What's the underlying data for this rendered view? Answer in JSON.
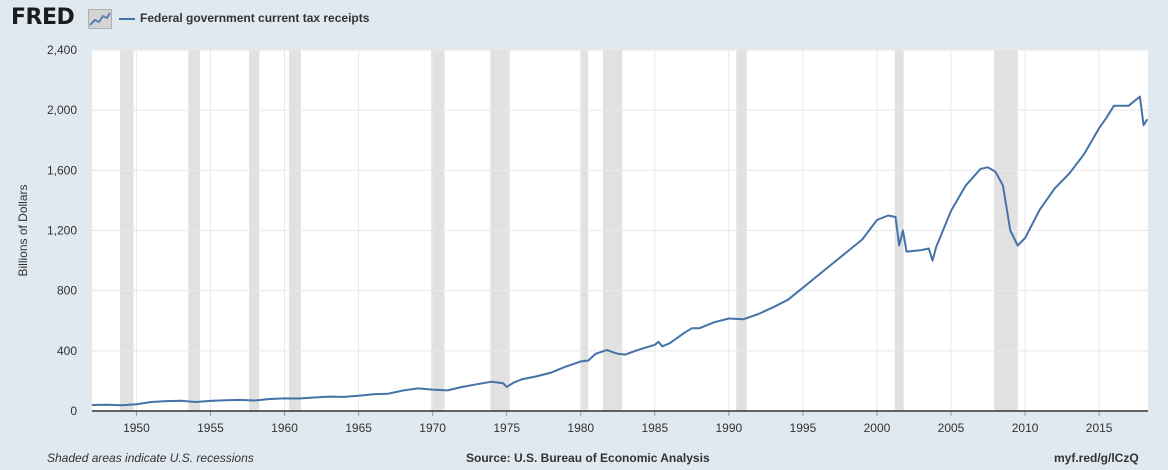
{
  "brand": {
    "logo_text": "FRED"
  },
  "legend": {
    "series_label": "Federal government current tax receipts"
  },
  "footer": {
    "note": "Shaded areas indicate U.S. recessions",
    "source": "Source: U.S. Bureau of Economic Analysis",
    "link": "myf.red/g/lCzQ"
  },
  "colors": {
    "line": "#4572a7",
    "recession": "#e1e1e1",
    "background": "#e1e9f0",
    "plot": "#ffffff",
    "grid": "#e8e8e8"
  },
  "chart_data": {
    "type": "line",
    "title": "",
    "xlabel": "",
    "ylabel": "Billions of Dollars",
    "xlim": [
      1947,
      2018.3
    ],
    "ylim": [
      0,
      2400
    ],
    "x_ticks": [
      1950,
      1955,
      1960,
      1965,
      1970,
      1975,
      1980,
      1985,
      1990,
      1995,
      2000,
      2005,
      2010,
      2015
    ],
    "y_ticks": [
      0,
      400,
      800,
      1200,
      1600,
      2000,
      2400
    ],
    "y_tick_labels": [
      "0",
      "400",
      "800",
      "1,200",
      "1,600",
      "2,000",
      "2,400"
    ],
    "grid": true,
    "recessions": [
      [
        1948.9,
        1949.8
      ],
      [
        1953.5,
        1954.3
      ],
      [
        1957.6,
        1958.3
      ],
      [
        1960.3,
        1961.1
      ],
      [
        1969.9,
        1970.8
      ],
      [
        1973.9,
        1975.2
      ],
      [
        1980.0,
        1980.5
      ],
      [
        1981.5,
        1982.8
      ],
      [
        1990.5,
        1991.2
      ],
      [
        2001.2,
        2001.8
      ],
      [
        2007.9,
        2009.5
      ]
    ],
    "series": [
      {
        "name": "Federal government current tax receipts",
        "x": [
          1947,
          1948,
          1949,
          1950,
          1951,
          1952,
          1953,
          1954,
          1955,
          1956,
          1957,
          1958,
          1959,
          1960,
          1961,
          1962,
          1963,
          1964,
          1965,
          1966,
          1967,
          1968,
          1969,
          1970,
          1971,
          1972,
          1973,
          1974,
          1974.75,
          1975.0,
          1975.5,
          1976,
          1977,
          1978,
          1979,
          1980,
          1980.5,
          1981,
          1981.75,
          1982.5,
          1983,
          1984,
          1985,
          1985.25,
          1985.5,
          1986,
          1987,
          1987.5,
          1988,
          1989,
          1990,
          1991,
          1992,
          1993,
          1994,
          1995,
          1996,
          1997,
          1998,
          1999,
          2000,
          2000.75,
          2001.25,
          2001.5,
          2001.75,
          2002,
          2003,
          2003.5,
          2003.75,
          2004,
          2005,
          2006,
          2007,
          2007.5,
          2008,
          2008.5,
          2009,
          2009.5,
          2010,
          2011,
          2012,
          2013,
          2014,
          2015,
          2015.5,
          2016,
          2017,
          2017.5,
          2017.75,
          2018,
          2018.25
        ],
        "values": [
          40,
          41,
          38,
          45,
          60,
          66,
          68,
          60,
          67,
          72,
          74,
          70,
          80,
          84,
          83,
          90,
          96,
          94,
          102,
          112,
          115,
          136,
          150,
          142,
          137,
          160,
          178,
          195,
          185,
          160,
          190,
          210,
          230,
          255,
          295,
          330,
          335,
          380,
          405,
          380,
          375,
          410,
          440,
          460,
          430,
          450,
          520,
          550,
          550,
          590,
          615,
          610,
          645,
          690,
          740,
          820,
          900,
          980,
          1060,
          1140,
          1270,
          1300,
          1290,
          1100,
          1200,
          1060,
          1070,
          1080,
          1000,
          1090,
          1330,
          1500,
          1610,
          1620,
          1590,
          1500,
          1200,
          1100,
          1150,
          1340,
          1480,
          1580,
          1710,
          1880,
          1950,
          2030,
          2030,
          2070,
          2090,
          1900,
          1940
        ]
      }
    ]
  }
}
